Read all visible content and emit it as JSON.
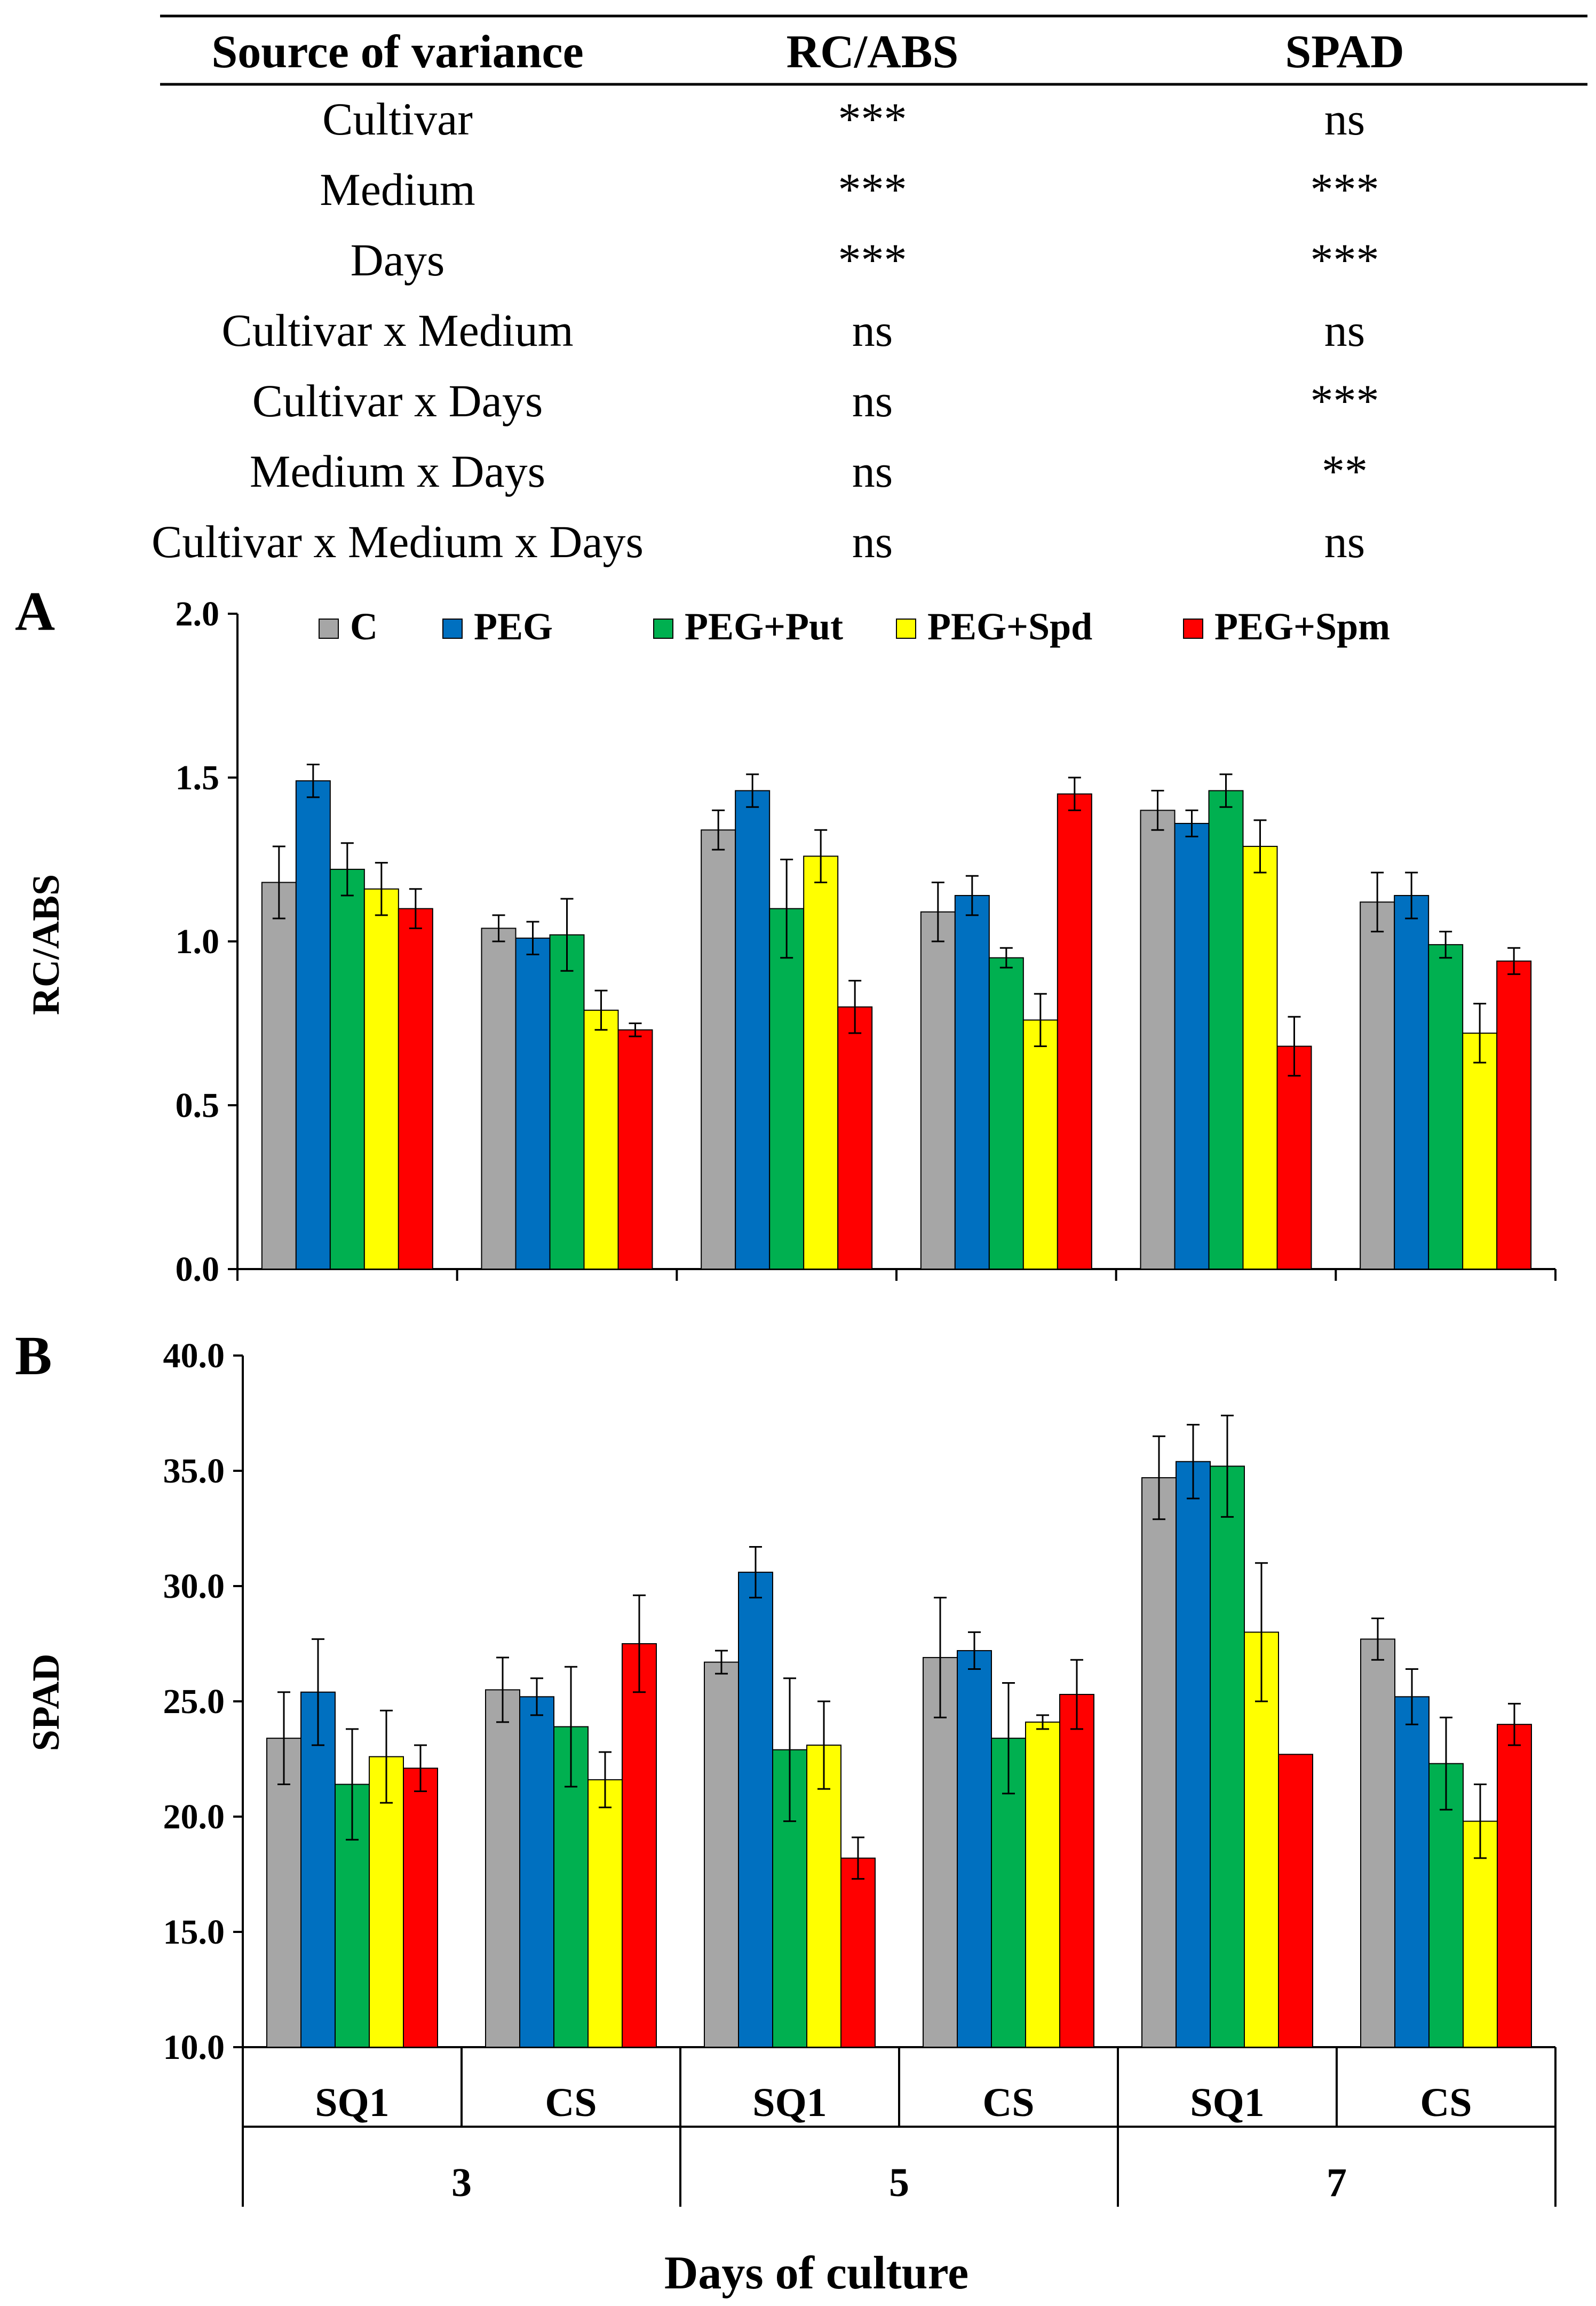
{
  "anova_table": {
    "headers": [
      "Source of variance",
      "RC/ABS",
      "SPAD"
    ],
    "rows": [
      [
        "Cultivar",
        "***",
        "ns"
      ],
      [
        "Medium",
        "***",
        "***"
      ],
      [
        "Days",
        "***",
        "***"
      ],
      [
        "Cultivar x Medium",
        "ns",
        "ns"
      ],
      [
        "Cultivar x Days",
        "ns",
        "***"
      ],
      [
        "Medium x Days",
        "ns",
        "**"
      ],
      [
        "Cultivar x Medium x Days",
        "ns",
        "ns"
      ]
    ]
  },
  "legend_entries": [
    {
      "label": "C",
      "color": "#a6a6a6"
    },
    {
      "label": "PEG",
      "color": "#0070c0"
    },
    {
      "label": "PEG+Put",
      "color": "#00b050"
    },
    {
      "label": "PEG+Spd",
      "color": "#ffff00"
    },
    {
      "label": "PEG+Spm",
      "color": "#ff0000"
    }
  ],
  "x_axis": {
    "cultivars": [
      "SQ1",
      "CS",
      "SQ1",
      "CS",
      "SQ1",
      "CS"
    ],
    "days": [
      "3",
      "5",
      "7"
    ],
    "title": "Days of culture"
  },
  "chart_data": [
    {
      "type": "bar",
      "panel_label": "A",
      "ylabel": "RC/ABS",
      "ylim": [
        0.0,
        2.0
      ],
      "yticks": [
        "0.0",
        "0.5",
        "1.0",
        "1.5",
        "2.0"
      ],
      "grid": false,
      "legend_position": "top",
      "categories": [
        "3 SQ1",
        "3 CS",
        "5 SQ1",
        "5 CS",
        "7 SQ1",
        "7 CS"
      ],
      "series": [
        {
          "name": "C",
          "color": "#a6a6a6",
          "values": [
            1.18,
            1.04,
            1.34,
            1.09,
            1.4,
            1.12
          ],
          "errors": [
            0.11,
            0.04,
            0.06,
            0.09,
            0.06,
            0.09
          ]
        },
        {
          "name": "PEG",
          "color": "#0070c0",
          "values": [
            1.49,
            1.01,
            1.46,
            1.14,
            1.36,
            1.14
          ],
          "errors": [
            0.05,
            0.05,
            0.05,
            0.06,
            0.04,
            0.07
          ]
        },
        {
          "name": "PEG+Put",
          "color": "#00b050",
          "values": [
            1.22,
            1.02,
            1.1,
            0.95,
            1.46,
            0.99
          ],
          "errors": [
            0.08,
            0.11,
            0.15,
            0.03,
            0.05,
            0.04
          ]
        },
        {
          "name": "PEG+Spd",
          "color": "#ffff00",
          "values": [
            1.16,
            0.79,
            1.26,
            0.76,
            1.29,
            0.72
          ],
          "errors": [
            0.08,
            0.06,
            0.08,
            0.08,
            0.08,
            0.09
          ]
        },
        {
          "name": "PEG+Spm",
          "color": "#ff0000",
          "values": [
            1.1,
            0.73,
            0.8,
            1.45,
            0.68,
            0.94
          ],
          "errors": [
            0.06,
            0.02,
            0.08,
            0.05,
            0.09,
            0.04
          ]
        }
      ]
    },
    {
      "type": "bar",
      "panel_label": "B",
      "ylabel": "SPAD",
      "ylim": [
        10.0,
        40.0
      ],
      "yticks": [
        "10.0",
        "15.0",
        "20.0",
        "25.0",
        "30.0",
        "35.0",
        "40.0"
      ],
      "grid": false,
      "categories": [
        "3 SQ1",
        "3 CS",
        "5 SQ1",
        "5 CS",
        "7 SQ1",
        "7 CS"
      ],
      "series": [
        {
          "name": "C",
          "color": "#a6a6a6",
          "values": [
            23.4,
            25.5,
            26.7,
            26.9,
            34.7,
            27.7
          ],
          "errors": [
            2.0,
            1.4,
            0.5,
            2.6,
            1.8,
            0.9
          ]
        },
        {
          "name": "PEG",
          "color": "#0070c0",
          "values": [
            25.4,
            25.2,
            30.6,
            27.2,
            35.4,
            25.2
          ],
          "errors": [
            2.3,
            0.8,
            1.1,
            0.8,
            1.6,
            1.2
          ]
        },
        {
          "name": "PEG+Put",
          "color": "#00b050",
          "values": [
            21.4,
            23.9,
            22.9,
            23.4,
            35.2,
            22.3
          ],
          "errors": [
            2.4,
            2.6,
            3.1,
            2.4,
            2.2,
            2.0
          ]
        },
        {
          "name": "PEG+Spd",
          "color": "#ffff00",
          "values": [
            22.6,
            21.6,
            23.1,
            24.1,
            28.0,
            19.8
          ],
          "errors": [
            2.0,
            1.2,
            1.9,
            0.3,
            3.0,
            1.6
          ]
        },
        {
          "name": "PEG+Spm",
          "color": "#ff0000",
          "values": [
            22.1,
            27.5,
            18.2,
            25.3,
            22.7,
            24.0
          ],
          "errors": [
            1.0,
            2.1,
            0.9,
            1.5,
            0.0,
            0.9
          ]
        }
      ]
    }
  ]
}
